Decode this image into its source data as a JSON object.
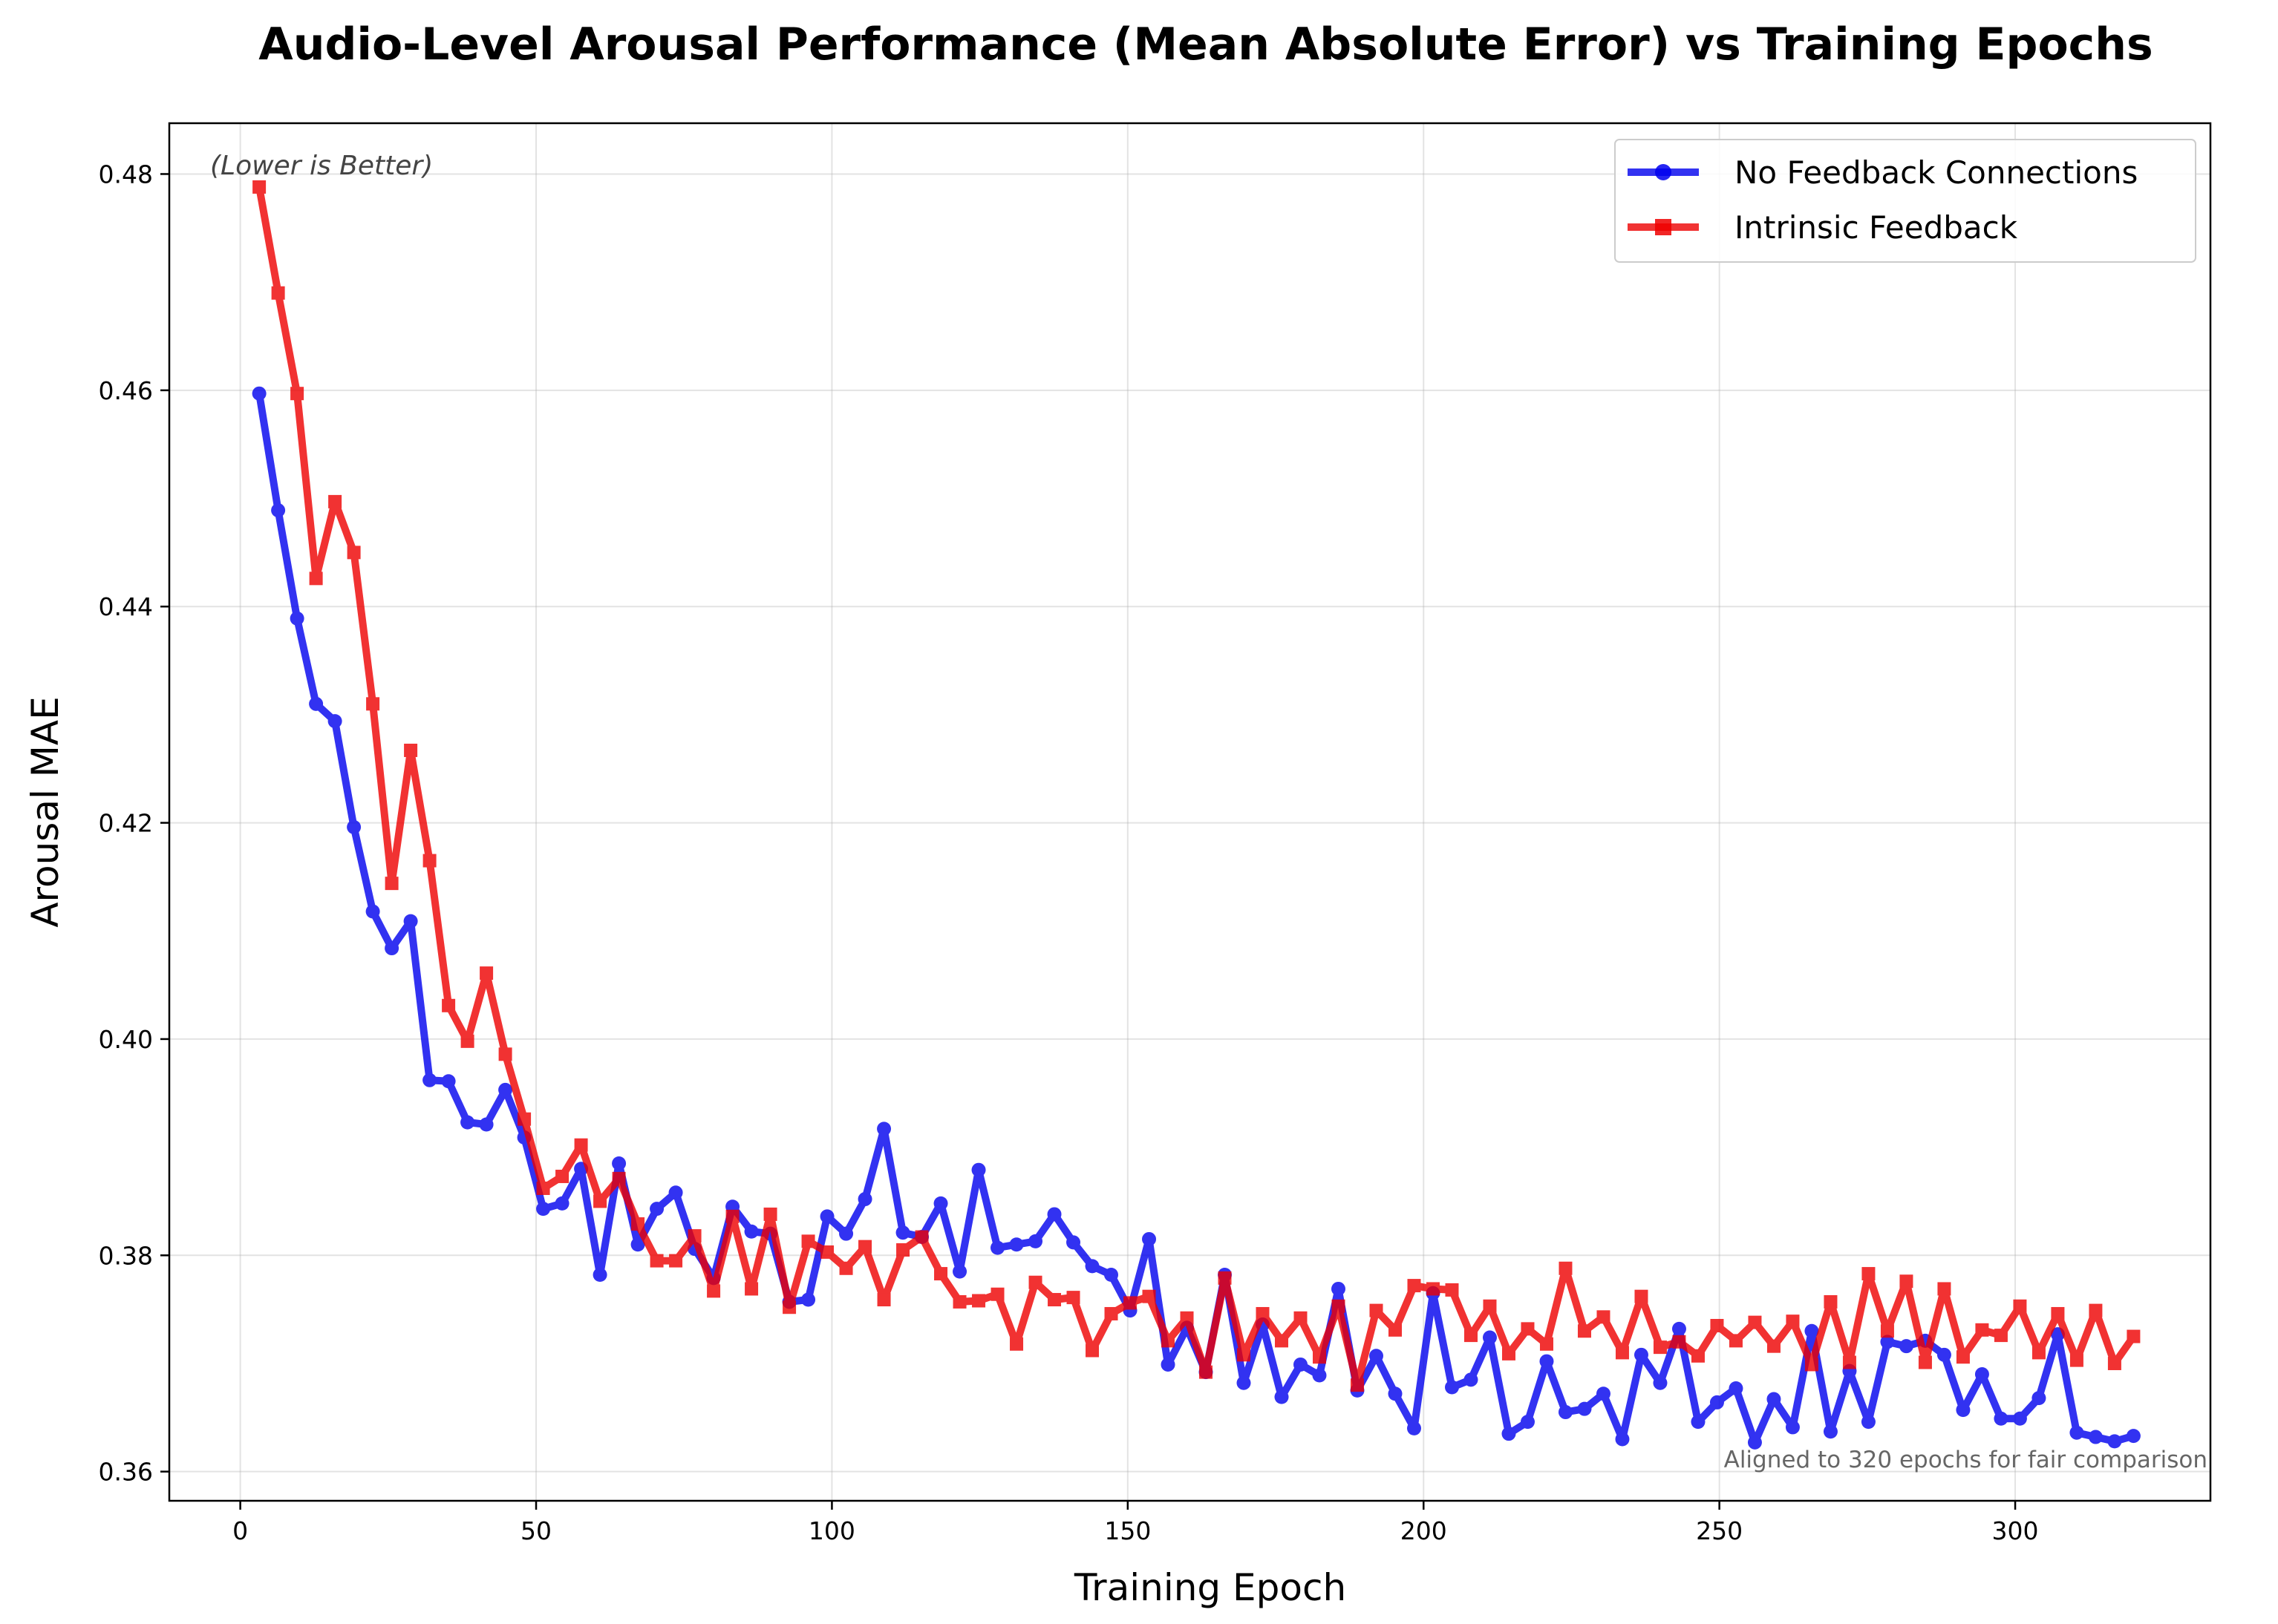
{
  "chart_data": {
    "type": "line",
    "title": "Audio-Level Arousal Performance (Mean Absolute Error) vs Training Epochs",
    "xlabel": "Training Epoch",
    "ylabel": "Arousal MAE",
    "xlim": [
      -12,
      333
    ],
    "ylim": [
      0.3573,
      0.4847
    ],
    "xticks": [
      0,
      50,
      100,
      150,
      200,
      250,
      300
    ],
    "yticks": [
      0.36,
      0.38,
      0.4,
      0.42,
      0.44,
      0.46,
      0.48
    ],
    "xtick_labels": [
      "0",
      "50",
      "100",
      "150",
      "200",
      "250",
      "300"
    ],
    "ytick_labels": [
      "0.36",
      "0.38",
      "0.40",
      "0.42",
      "0.44",
      "0.46",
      "0.48"
    ],
    "grid": true,
    "legend_position": "top-right",
    "annotation_top": "(Lower is Better)",
    "annotation_bottom": "Aligned to 320 epochs for fair comparison",
    "x": [
      3.2,
      6.4,
      9.6,
      12.8,
      16.0,
      19.2,
      22.4,
      25.6,
      28.8,
      32.0,
      35.2,
      38.4,
      41.6,
      44.8,
      48.0,
      51.2,
      54.4,
      57.6,
      60.8,
      64.0,
      67.2,
      70.4,
      73.6,
      76.8,
      80.0,
      83.2,
      86.4,
      89.6,
      92.8,
      96.0,
      99.2,
      102.4,
      105.6,
      108.8,
      112.0,
      115.2,
      118.4,
      121.6,
      124.8,
      128.0,
      131.2,
      134.4,
      137.6,
      140.8,
      144.0,
      147.2,
      150.4,
      153.6,
      156.8,
      160.0,
      163.2,
      166.4,
      169.6,
      172.8,
      176.0,
      179.2,
      182.4,
      185.6,
      188.8,
      192.0,
      195.2,
      198.4,
      201.6,
      204.8,
      208.0,
      211.2,
      214.4,
      217.6,
      220.8,
      224.0,
      227.2,
      230.4,
      233.6,
      236.8,
      240.0,
      243.2,
      246.4,
      249.6,
      252.8,
      256.0,
      259.2,
      262.4,
      265.6,
      268.8,
      272.0,
      275.2,
      278.4,
      281.6,
      284.8,
      288.0,
      291.2,
      294.4,
      297.6,
      300.8,
      304.0,
      307.2,
      310.4,
      313.6,
      316.8,
      320.0
    ],
    "series": [
      {
        "name": "No Feedback Connections",
        "color": "#0000ee",
        "marker": "circle",
        "values": [
          0.4597,
          0.4489,
          0.4389,
          0.431,
          0.4294,
          0.4196,
          0.4118,
          0.4084,
          0.4109,
          0.3962,
          0.3961,
          0.3923,
          0.3921,
          0.3953,
          0.3909,
          0.3843,
          0.3848,
          0.388,
          0.3782,
          0.3885,
          0.381,
          0.3843,
          0.3858,
          0.3806,
          0.3779,
          0.3845,
          0.3822,
          0.382,
          0.3757,
          0.3759,
          0.3836,
          0.382,
          0.3852,
          0.3917,
          0.3821,
          0.3817,
          0.3848,
          0.3785,
          0.3879,
          0.3807,
          0.381,
          0.3813,
          0.3838,
          0.3812,
          0.379,
          0.3782,
          0.3749,
          0.3815,
          0.3699,
          0.3733,
          0.3692,
          0.3782,
          0.3682,
          0.3736,
          0.3669,
          0.3699,
          0.3689,
          0.3769,
          0.3675,
          0.3707,
          0.3672,
          0.364,
          0.3765,
          0.3678,
          0.3685,
          0.3724,
          0.3635,
          0.3646,
          0.3702,
          0.3655,
          0.3658,
          0.3672,
          0.363,
          0.3708,
          0.3682,
          0.3732,
          0.3646,
          0.3664,
          0.3677,
          0.3627,
          0.3667,
          0.3641,
          0.373,
          0.3637,
          0.3693,
          0.3646,
          0.372,
          0.3716,
          0.3721,
          0.3708,
          0.3657,
          0.369,
          0.3649,
          0.3649,
          0.3668,
          0.3727,
          0.3636,
          0.3632,
          0.3628,
          0.3633
        ]
      },
      {
        "name": "Intrinsic Feedback",
        "color": "#ee0000",
        "marker": "square",
        "values": [
          0.4788,
          0.469,
          0.4597,
          0.4426,
          0.4497,
          0.445,
          0.431,
          0.4144,
          0.4267,
          0.4165,
          0.4031,
          0.3998,
          0.4061,
          0.3986,
          0.3926,
          0.3862,
          0.3873,
          0.3902,
          0.385,
          0.3871,
          0.3829,
          0.3795,
          0.3795,
          0.3818,
          0.3767,
          0.3836,
          0.3769,
          0.3838,
          0.3752,
          0.3813,
          0.3803,
          0.3788,
          0.3808,
          0.3759,
          0.3805,
          0.3817,
          0.3783,
          0.3757,
          0.3758,
          0.3764,
          0.3718,
          0.3775,
          0.3759,
          0.3761,
          0.3712,
          0.3746,
          0.3756,
          0.3762,
          0.3721,
          0.3742,
          0.3692,
          0.3779,
          0.3708,
          0.3746,
          0.3721,
          0.3742,
          0.3706,
          0.3753,
          0.368,
          0.3749,
          0.3731,
          0.3772,
          0.3769,
          0.3768,
          0.3726,
          0.3753,
          0.3709,
          0.3732,
          0.3718,
          0.3788,
          0.373,
          0.3743,
          0.371,
          0.3762,
          0.3715,
          0.372,
          0.3707,
          0.3735,
          0.3721,
          0.3738,
          0.3716,
          0.3739,
          0.3699,
          0.3757,
          0.3701,
          0.3783,
          0.373,
          0.3776,
          0.3701,
          0.3769,
          0.3706,
          0.3731,
          0.3726,
          0.3753,
          0.371,
          0.3746,
          0.3703,
          0.3749,
          0.37,
          0.3725
        ]
      }
    ]
  }
}
